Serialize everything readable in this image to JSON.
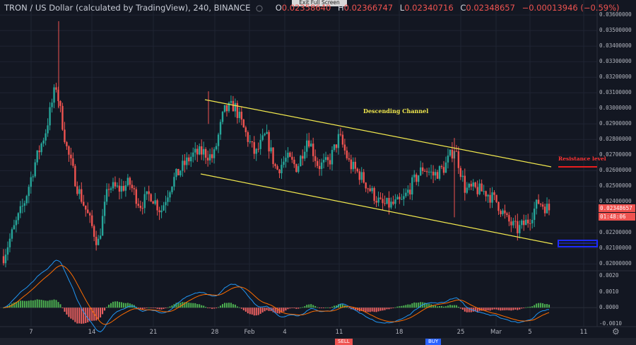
{
  "header": {
    "symbol": "TRON / US Dollar (calculated by TradingView), 240, BINANCE",
    "dot": "○",
    "o_label": "O",
    "o_value": "0.02358640",
    "h_label": "H",
    "h_value": "0.02366747",
    "l_label": "L",
    "l_value": "0.02340716",
    "c_label": "C",
    "c_value": "0.02348657",
    "change": "−0.00013946 (−0.59%)"
  },
  "exit_fullscreen": "Exit Full Screen (ESC)",
  "price_axis": {
    "labels": [
      "0.03600000",
      "0.03500000",
      "0.03400000",
      "0.03300000",
      "0.03200000",
      "0.03100000",
      "0.03000000",
      "0.02900000",
      "0.02800000",
      "0.02700000",
      "0.02600000",
      "0.02500000",
      "0.02400000",
      "0.02200000",
      "0.02100000",
      "0.02000000"
    ],
    "current_price": "0.02348657",
    "countdown": "01:48:06"
  },
  "indicator_axis": {
    "labels": [
      "0.0020",
      "0.0010",
      "0.0000",
      "-0.0010"
    ]
  },
  "time_axis": [
    "7",
    "14",
    "21",
    "28",
    "Feb",
    "4",
    "11",
    "18",
    "25",
    "Mar",
    "5",
    "11"
  ],
  "annotations": {
    "channel_label": "Descending Channel",
    "resistance_label": "Resistance level"
  },
  "bottom_bar": {
    "sell": "SELL",
    "buy": "BUY"
  },
  "colors": {
    "up": "#26a69a",
    "down": "#ef5350",
    "channel": "#f2e94e",
    "resistance": "#e91e1e",
    "support": "#1e2bff",
    "macd": "#2196f3",
    "signal": "#ff6d00"
  },
  "chart_data": {
    "type": "candlestick",
    "symbol": "TRON / US Dollar",
    "interval": "240",
    "exchange": "BINANCE",
    "ylim": [
      0.0197,
      0.0366
    ],
    "indicator_ylim": [
      -0.0012,
      0.0022
    ],
    "x_ticks": [
      "7",
      "14",
      "21",
      "28",
      "Feb",
      "4",
      "11",
      "18",
      "25",
      "Mar",
      "5",
      "11"
    ],
    "approx_path": [
      0.0205,
      0.0223,
      0.024,
      0.0265,
      0.0285,
      0.0315,
      0.0275,
      0.025,
      0.0232,
      0.0213,
      0.025,
      0.0248,
      0.0252,
      0.0238,
      0.0245,
      0.0234,
      0.0252,
      0.0262,
      0.027,
      0.0272,
      0.0268,
      0.0298,
      0.0302,
      0.0285,
      0.027,
      0.0283,
      0.026,
      0.0268,
      0.0262,
      0.0282,
      0.0263,
      0.0265,
      0.0282,
      0.0264,
      0.0257,
      0.0247,
      0.0238,
      0.0238,
      0.024,
      0.0252,
      0.0262,
      0.0257,
      0.0262,
      0.0275,
      0.0248,
      0.0248,
      0.0246,
      0.024,
      0.0228,
      0.0222,
      0.0228,
      0.024,
      0.0235
    ],
    "channel_upper": [
      [
        0.0304,
        0.0262
      ]
    ],
    "channel_lower": [
      [
        0.0258,
        0.0212
      ]
    ],
    "resistance_level": 0.0261,
    "support_level": 0.0214
  }
}
